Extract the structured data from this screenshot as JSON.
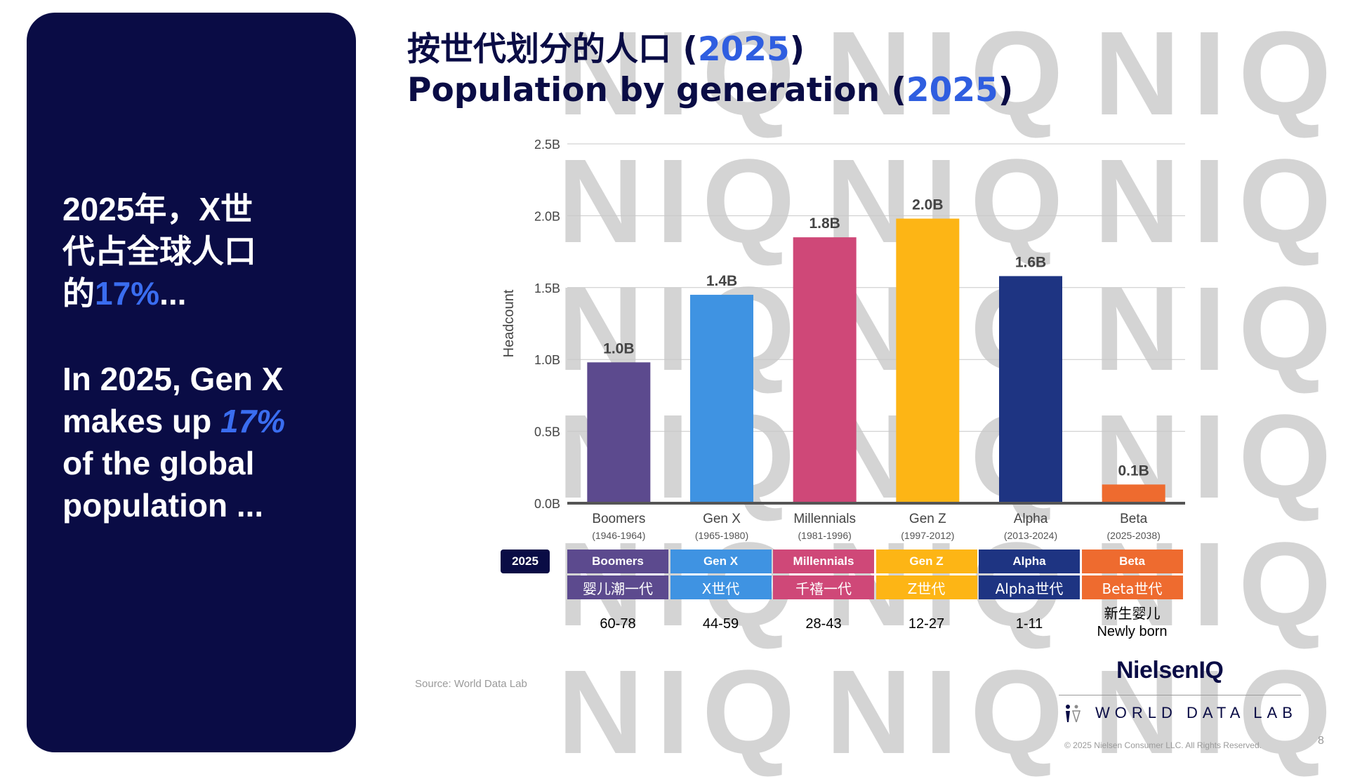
{
  "watermark_text": "NIQ",
  "left_panel": {
    "zh_line1": "2025年，X世",
    "zh_line2": "代占全球人口",
    "zh_line3_pre": "的",
    "zh_line3_highlight": "17%",
    "zh_line3_post": "...",
    "en_line1": "In 2025, Gen X",
    "en_line2_pre": "makes up ",
    "en_line2_highlight": "17%",
    "en_line3": "of the global",
    "en_line4": "population ..."
  },
  "title": {
    "zh_text": "按世代划分的人口 (",
    "zh_year": "2025",
    "zh_close": ")",
    "en_text": "Population by generation (",
    "en_year": "2025",
    "en_close": ")"
  },
  "chart_data": {
    "type": "bar",
    "ylabel": "Headcount",
    "ylim": [
      0,
      2.5
    ],
    "yticks": [
      "0.0B",
      "0.5B",
      "1.0B",
      "1.5B",
      "2.0B",
      "2.5B"
    ],
    "grid": true,
    "categories": [
      "Boomers",
      "Gen X",
      "Millennials",
      "Gen Z",
      "Alpha",
      "Beta"
    ],
    "category_years": [
      "(1946-1964)",
      "(1965-1980)",
      "(1981-1996)",
      "(1997-2012)",
      "(2013-2024)",
      "(2025-2038)"
    ],
    "values": [
      0.98,
      1.45,
      1.85,
      1.98,
      1.58,
      0.13
    ],
    "data_labels": [
      "1.0B",
      "1.4B",
      "1.8B",
      "2.0B",
      "1.6B",
      "0.1B"
    ],
    "colors": [
      "#5c4a8e",
      "#3f93e2",
      "#cf4878",
      "#fdb515",
      "#1e3482",
      "#ee6b2f"
    ]
  },
  "generation_table": {
    "year_badge": "2025",
    "columns": [
      {
        "en": "Boomers",
        "zh": "婴儿潮一代",
        "ages": [
          "60-78"
        ],
        "color": "#5c4a8e"
      },
      {
        "en": "Gen X",
        "zh": "X世代",
        "ages": [
          "44-59"
        ],
        "color": "#3f93e2"
      },
      {
        "en": "Millennials",
        "zh": "千禧一代",
        "ages": [
          "28-43"
        ],
        "color": "#cf4878"
      },
      {
        "en": "Gen Z",
        "zh": "Z世代",
        "ages": [
          "12-27"
        ],
        "color": "#fdb515"
      },
      {
        "en": "Alpha",
        "zh": "Alpha世代",
        "ages": [
          "1-11"
        ],
        "color": "#1e3482"
      },
      {
        "en": "Beta",
        "zh": "Beta世代",
        "ages": [
          "新生婴儿",
          "Newly born"
        ],
        "color": "#ee6b2f"
      }
    ]
  },
  "footer": {
    "source": "Source: World Data Lab",
    "brand": "NielsenIQ",
    "wdl": "WORLD DATA LAB",
    "copyright": "© 2025 Nielsen Consumer LLC. All Rights Reserved.",
    "page_number": "8"
  }
}
